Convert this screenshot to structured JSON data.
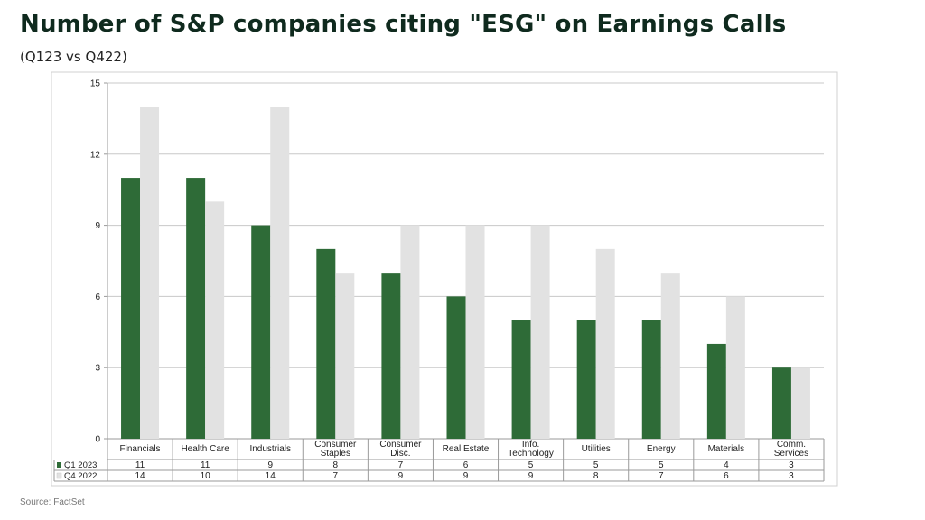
{
  "title": "Number of S&P companies citing \"ESG\" on Earnings Calls",
  "subtitle": "(Q123 vs Q422)",
  "source": "Source: FactSet",
  "chart_data": {
    "type": "bar",
    "categories": [
      "Financials",
      "Health Care",
      "Industrials",
      "Consumer Staples",
      "Consumer Disc.",
      "Real Estate",
      "Info. Technology",
      "Utilities",
      "Energy",
      "Materials",
      "Comm. Services"
    ],
    "category_lines": [
      [
        "Financials"
      ],
      [
        "Health Care"
      ],
      [
        "Industrials"
      ],
      [
        "Consumer",
        "Staples"
      ],
      [
        "Consumer",
        "Disc."
      ],
      [
        "Real Estate"
      ],
      [
        "Info.",
        "Technology"
      ],
      [
        "Utilities"
      ],
      [
        "Energy"
      ],
      [
        "Materials"
      ],
      [
        "Comm.",
        "Services"
      ]
    ],
    "series": [
      {
        "name": "Q1 2023",
        "values": [
          11,
          11,
          9,
          8,
          7,
          6,
          5,
          5,
          5,
          4,
          3
        ],
        "color": "#2e6b37"
      },
      {
        "name": "Q4 2022",
        "values": [
          14,
          10,
          14,
          7,
          9,
          9,
          9,
          8,
          7,
          6,
          3
        ],
        "color": "#e2e2e2"
      }
    ],
    "ylim": [
      0,
      15
    ],
    "yticks": [
      0,
      3,
      6,
      9,
      12,
      15
    ],
    "grid": true,
    "legend": "data-table-below"
  }
}
